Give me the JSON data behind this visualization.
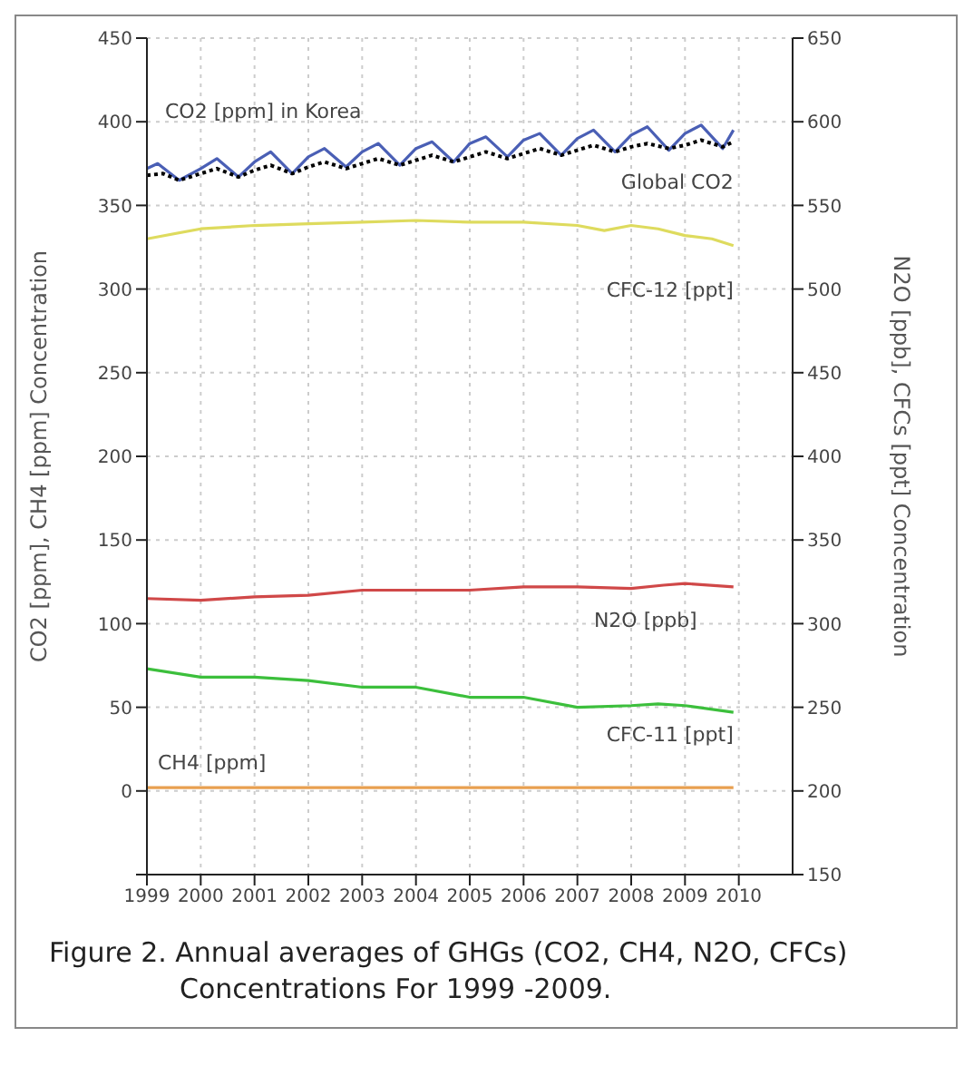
{
  "chart_data": {
    "type": "line",
    "ylabel": "CO2 [ppm], CH4 [ppm] Concentration",
    "y2label": "N2O [ppb], CFCs [ppt] Concentration",
    "xlim": [
      1999,
      2011
    ],
    "xticks": [
      1999,
      2000,
      2001,
      2002,
      2003,
      2004,
      2005,
      2006,
      2007,
      2008,
      2009,
      2010
    ],
    "ylim": [
      -50,
      450
    ],
    "yticks": [
      {
        "value": -50,
        "label": null
      },
      0,
      50,
      100,
      150,
      200,
      250,
      300,
      350,
      400,
      450
    ],
    "y2lim": [
      150,
      650
    ],
    "y2ticks": [
      150,
      200,
      250,
      300,
      350,
      400,
      450,
      500,
      550,
      600,
      650
    ],
    "grid": true,
    "marker": "none",
    "series": [
      {
        "name": "CO2 [ppm] in Korea",
        "color": "#4a5fb5",
        "line_style": "solid",
        "x": [
          1999,
          1999.2,
          1999.6,
          2000,
          2000.3,
          2000.7,
          2001,
          2001.3,
          2001.7,
          2002,
          2002.3,
          2002.7,
          2003,
          2003.3,
          2003.7,
          2004,
          2004.3,
          2004.7,
          2005,
          2005.3,
          2005.7,
          2006,
          2006.3,
          2006.7,
          2007,
          2007.3,
          2007.7,
          2008,
          2008.3,
          2008.7,
          2009,
          2009.3,
          2009.7,
          2009.9
        ],
        "values": [
          372,
          375,
          365,
          372,
          378,
          367,
          376,
          382,
          369,
          379,
          384,
          373,
          382,
          387,
          374,
          384,
          388,
          376,
          387,
          391,
          379,
          389,
          393,
          380,
          390,
          395,
          382,
          392,
          397,
          383,
          393,
          398,
          384,
          395
        ]
      },
      {
        "name": "Global CO2",
        "color": "#000000",
        "line_style": "dotted",
        "x": [
          1999,
          1999.3,
          1999.6,
          2000,
          2000.3,
          2000.7,
          2001,
          2001.3,
          2001.7,
          2002,
          2002.3,
          2002.7,
          2003,
          2003.3,
          2003.7,
          2004,
          2004.3,
          2004.7,
          2005,
          2005.3,
          2005.7,
          2006,
          2006.3,
          2006.7,
          2007,
          2007.3,
          2007.7,
          2008,
          2008.3,
          2008.7,
          2009,
          2009.3,
          2009.7,
          2009.9
        ],
        "values": [
          368,
          369,
          365,
          369,
          372,
          367,
          371,
          374,
          369,
          373,
          376,
          372,
          375,
          378,
          374,
          377,
          380,
          376,
          379,
          382,
          378,
          381,
          384,
          380,
          383,
          386,
          382,
          385,
          387,
          384,
          386,
          389,
          385,
          388
        ]
      },
      {
        "name": "CFC-12 [ppt]",
        "color": "#dedb5e",
        "line_style": "solid",
        "axis": "y2",
        "x": [
          1999,
          2000,
          2001,
          2002,
          2003,
          2004,
          2005,
          2006,
          2007,
          2007.5,
          2008,
          2008.5,
          2009,
          2009.5,
          2009.9
        ],
        "values": [
          530,
          536,
          538,
          539,
          540,
          541,
          540,
          540,
          538,
          535,
          538,
          536,
          532,
          530,
          526
        ]
      },
      {
        "name": "N2O [ppb]",
        "color": "#d04848",
        "line_style": "solid",
        "axis": "y2",
        "x": [
          1999,
          2000,
          2001,
          2002,
          2003,
          2004,
          2005,
          2006,
          2007,
          2008,
          2008.6,
          2009,
          2009.9
        ],
        "values": [
          315,
          314,
          316,
          317,
          320,
          320,
          320,
          322,
          322,
          321,
          323,
          324,
          322
        ]
      },
      {
        "name": "CFC-11 [ppt]",
        "color": "#3cbf3c",
        "line_style": "solid",
        "axis": "y2",
        "x": [
          1999,
          2000,
          2001,
          2002,
          2003,
          2004,
          2005,
          2006,
          2007,
          2008,
          2008.5,
          2009,
          2009.9
        ],
        "values": [
          273,
          268,
          268,
          266,
          262,
          262,
          256,
          256,
          250,
          251,
          252,
          251,
          247
        ]
      },
      {
        "name": "CH4 [ppm]",
        "color": "#e8a050",
        "line_style": "solid",
        "x": [
          1999,
          2009.9
        ],
        "values": [
          2,
          2
        ]
      }
    ],
    "annotations": [
      "Figure 2.  Annual averages of GHGs (CO2, CH4, N2O, CFCs) Concentrations For 1999 -2009."
    ]
  }
}
